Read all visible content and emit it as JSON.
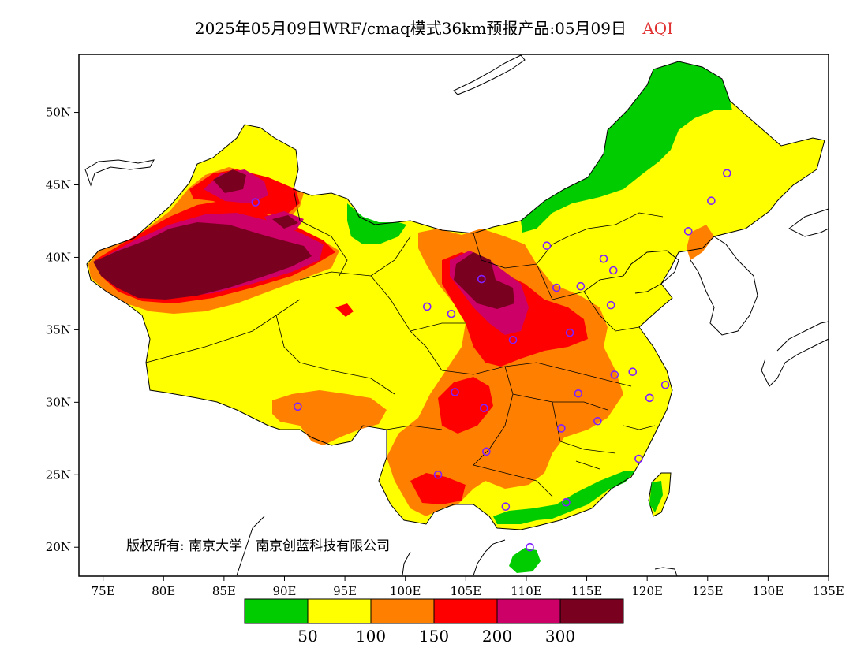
{
  "title": {
    "main": "2025年05月09日WRF/cmaq模式36km预报产品:05月09日",
    "variable": "AQI",
    "variable_color": "#e03030"
  },
  "map": {
    "lon_ticks": [
      "75E",
      "80E",
      "85E",
      "90E",
      "95E",
      "100E",
      "105E",
      "110E",
      "115E",
      "120E",
      "125E",
      "130E",
      "135E"
    ],
    "lat_ticks": [
      "50N",
      "45N",
      "40N",
      "35N",
      "30N",
      "25N",
      "20N"
    ],
    "lon_range": [
      73,
      135
    ],
    "lat_range": [
      18,
      54
    ],
    "copyright": {
      "owner1": "版权所有: 南京大学",
      "owner2": "南京创蓝科技有限公司"
    }
  },
  "colorbar": {
    "colors": [
      "#00cc00",
      "#ffff00",
      "#ff8000",
      "#ff0000",
      "#cc0066",
      "#7a0020"
    ],
    "labels": [
      "50",
      "100",
      "150",
      "200",
      "300"
    ]
  },
  "stations": [
    [
      87.6,
      43.8
    ],
    [
      101.8,
      36.6
    ],
    [
      103.8,
      36.1
    ],
    [
      106.3,
      38.5
    ],
    [
      111.7,
      40.8
    ],
    [
      112.5,
      37.9
    ],
    [
      114.5,
      38.0
    ],
    [
      116.4,
      39.9
    ],
    [
      117.2,
      39.1
    ],
    [
      117.0,
      36.7
    ],
    [
      113.6,
      34.8
    ],
    [
      108.9,
      34.3
    ],
    [
      104.1,
      30.7
    ],
    [
      106.5,
      29.6
    ],
    [
      106.7,
      26.6
    ],
    [
      102.7,
      25.0
    ],
    [
      108.3,
      22.8
    ],
    [
      113.3,
      23.1
    ],
    [
      110.3,
      20.0
    ],
    [
      112.9,
      28.2
    ],
    [
      115.9,
      28.7
    ],
    [
      114.3,
      30.6
    ],
    [
      117.3,
      31.9
    ],
    [
      118.8,
      32.1
    ],
    [
      120.2,
      30.3
    ],
    [
      121.5,
      31.2
    ],
    [
      119.3,
      26.1
    ],
    [
      123.4,
      41.8
    ],
    [
      125.3,
      43.9
    ],
    [
      126.6,
      45.8
    ],
    [
      91.1,
      29.7
    ]
  ]
}
